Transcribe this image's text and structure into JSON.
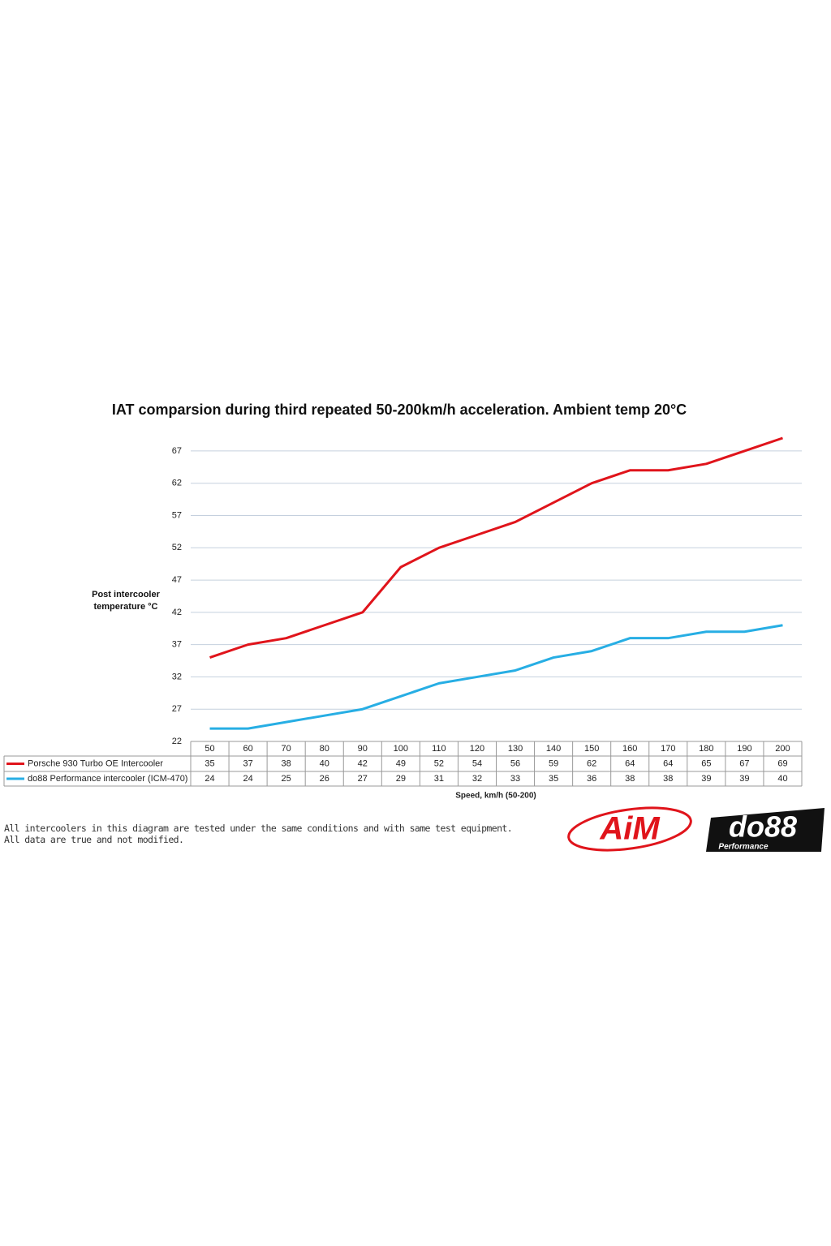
{
  "chart_data": {
    "type": "line",
    "title": "IAT comparsion during third repeated 50-200km/h acceleration. Ambient temp 20°C",
    "ylabel": "Post intercooler temperature °C",
    "xlabel": "Speed, km/h (50-200)",
    "categories": [
      "50",
      "60",
      "70",
      "80",
      "90",
      "100",
      "110",
      "120",
      "130",
      "140",
      "150",
      "160",
      "170",
      "180",
      "190",
      "200"
    ],
    "series": [
      {
        "name": "Porsche 930 Turbo OE Intercooler",
        "color": "#e0141b",
        "values": [
          35,
          37,
          38,
          40,
          42,
          49,
          52,
          54,
          56,
          59,
          62,
          64,
          64,
          65,
          67,
          69
        ]
      },
      {
        "name": "do88 Performance intercooler (ICM-470)",
        "color": "#27aee4",
        "values": [
          24,
          24,
          25,
          26,
          27,
          29,
          31,
          32,
          33,
          35,
          36,
          38,
          38,
          39,
          39,
          40
        ]
      }
    ],
    "ylim": [
      22,
      69
    ],
    "yticks": [
      22,
      27,
      32,
      37,
      42,
      47,
      52,
      57,
      62,
      67
    ],
    "grid": true
  },
  "notes": [
    "All intercoolers in this diagram are tested under the same conditions and with same test equipment.",
    "All data are true and not modified."
  ],
  "logos": [
    "AiM",
    "do88",
    "Performance"
  ]
}
